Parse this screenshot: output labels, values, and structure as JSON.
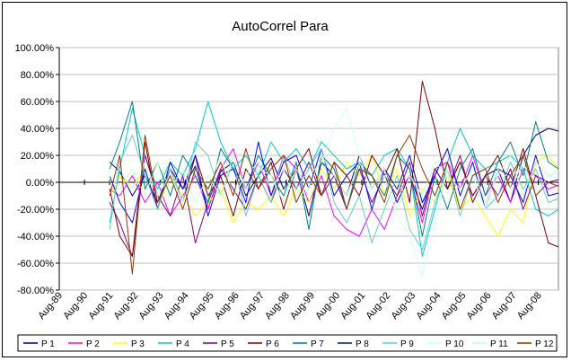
{
  "chart_data": {
    "type": "line",
    "title": "AutoCorrel Para",
    "xlabel": "",
    "ylabel": "",
    "ylim": [
      -80,
      100
    ],
    "y_ticks": [
      "100.00%",
      "80.00%",
      "60.00%",
      "40.00%",
      "20.00%",
      "0.00%",
      "-20.00%",
      "-40.00%",
      "-60.00%",
      "-80.00%"
    ],
    "x_ticks": [
      "Aug-89",
      "Aug-90",
      "Aug-91",
      "Aug-92",
      "Aug-93",
      "Aug-94",
      "Aug-95",
      "Aug-96",
      "Aug-97",
      "Aug-98",
      "Aug-99",
      "Aug-00",
      "Aug-01",
      "Aug-02",
      "Aug-03",
      "Aug-04",
      "Aug-05",
      "Aug-06",
      "Aug-07",
      "Aug-08"
    ],
    "x_range": [
      1989.6,
      2009.4
    ],
    "grid": "horizontal",
    "legend_position": "bottom",
    "series": [
      {
        "name": "P 1",
        "color": "#000080",
        "x": [
          1991.6,
          1992.0,
          1992.5,
          1993.0,
          1993.5,
          1994.0,
          1994.5,
          1995.0,
          1995.5,
          1996.0,
          1996.5,
          1997.0,
          1997.5,
          1998.0,
          1998.5,
          1999.0,
          1999.5,
          2000.0,
          2000.5,
          2001.0,
          2001.5,
          2002.0,
          2002.5,
          2003.0,
          2003.5,
          2004.0,
          2004.5,
          2005.0,
          2005.5,
          2006.0,
          2006.5,
          2007.0,
          2007.5,
          2008.0,
          2008.5,
          2009.0,
          2009.4
        ],
        "values": [
          15,
          8,
          -10,
          5,
          -15,
          10,
          -5,
          12,
          -20,
          8,
          15,
          -10,
          5,
          18,
          -5,
          10,
          -25,
          15,
          5,
          -10,
          20,
          -5,
          10,
          -15,
          5,
          -20,
          10,
          -5,
          15,
          -10,
          5,
          10,
          -15,
          20,
          35,
          40,
          38
        ]
      },
      {
        "name": "P 2",
        "color": "#ff00ff",
        "x": [
          1991.6,
          1992.0,
          1992.5,
          1993.0,
          1993.5,
          1994.0,
          1994.5,
          1995.0,
          1995.5,
          1996.0,
          1996.5,
          1997.0,
          1997.5,
          1998.0,
          1998.5,
          1999.0,
          1999.5,
          2000.0,
          2000.5,
          2001.0,
          2001.5,
          2002.0,
          2002.5,
          2003.0,
          2003.5,
          2004.0,
          2004.5,
          2005.0,
          2005.5,
          2006.0,
          2006.5,
          2007.0,
          2007.5,
          2008.0,
          2008.5,
          2009.0,
          2009.4
        ],
        "values": [
          -5,
          -10,
          5,
          -15,
          0,
          -25,
          -10,
          5,
          -20,
          10,
          25,
          -5,
          15,
          -10,
          20,
          10,
          -15,
          5,
          -25,
          -35,
          -40,
          -20,
          -35,
          -10,
          5,
          -30,
          10,
          15,
          -5,
          20,
          -10,
          5,
          -15,
          10,
          5,
          -5,
          -2
        ]
      },
      {
        "name": "P 3",
        "color": "#ffff00",
        "x": [
          1991.6,
          1992.0,
          1992.5,
          1993.0,
          1993.5,
          1994.0,
          1994.5,
          1995.0,
          1995.5,
          1996.0,
          1996.5,
          1997.0,
          1997.5,
          1998.0,
          1998.5,
          1999.0,
          1999.5,
          2000.0,
          2000.5,
          2001.0,
          2001.5,
          2002.0,
          2002.5,
          2003.0,
          2003.5,
          2004.0,
          2004.5,
          2005.0,
          2005.5,
          2006.0,
          2006.5,
          2007.0,
          2007.5,
          2008.0,
          2008.5,
          2009.0,
          2009.4
        ],
        "values": [
          -10,
          5,
          -5,
          10,
          -20,
          5,
          -10,
          -25,
          -15,
          -5,
          -30,
          -15,
          -20,
          -10,
          -25,
          -5,
          -15,
          10,
          -5,
          15,
          5,
          20,
          -10,
          10,
          -25,
          -5,
          -15,
          5,
          -20,
          -10,
          -25,
          -40,
          -20,
          -30,
          15,
          20,
          10
        ]
      },
      {
        "name": "P 4",
        "color": "#00cccc",
        "x": [
          1991.6,
          1992.0,
          1992.5,
          1993.0,
          1993.5,
          1994.0,
          1994.5,
          1995.0,
          1995.5,
          1996.0,
          1996.5,
          1997.0,
          1997.5,
          1998.0,
          1998.5,
          1999.0,
          1999.5,
          2000.0,
          2000.5,
          2001.0,
          2001.5,
          2002.0,
          2002.5,
          2003.0,
          2003.5,
          2004.0,
          2004.5,
          2005.0,
          2005.5,
          2006.0,
          2006.5,
          2007.0,
          2007.5,
          2008.0,
          2008.5,
          2009.0,
          2009.4
        ],
        "values": [
          -30,
          10,
          55,
          20,
          -5,
          15,
          5,
          25,
          60,
          30,
          10,
          20,
          5,
          30,
          15,
          25,
          10,
          30,
          20,
          10,
          15,
          5,
          20,
          25,
          10,
          -55,
          -20,
          15,
          40,
          20,
          10,
          15,
          20,
          10,
          -20,
          -25,
          -20
        ]
      },
      {
        "name": "P 5",
        "color": "#800080",
        "x": [
          1991.6,
          1992.0,
          1992.5,
          1993.0,
          1993.5,
          1994.0,
          1994.5,
          1995.0,
          1995.5,
          1996.0,
          1996.5,
          1997.0,
          1997.5,
          1998.0,
          1998.5,
          1999.0,
          1999.5,
          2000.0,
          2000.5,
          2001.0,
          2001.5,
          2002.0,
          2002.5,
          2003.0,
          2003.5,
          2004.0,
          2004.5,
          2005.0,
          2005.5,
          2006.0,
          2006.5,
          2007.0,
          2007.5,
          2008.0,
          2008.5,
          2009.0,
          2009.4
        ],
        "values": [
          -15,
          -30,
          -55,
          20,
          -10,
          -25,
          5,
          -45,
          -15,
          10,
          -5,
          -20,
          5,
          -15,
          10,
          -5,
          15,
          -10,
          5,
          -20,
          10,
          -15,
          5,
          -10,
          15,
          -25,
          10,
          -5,
          20,
          -15,
          5,
          -10,
          10,
          -20,
          5,
          0,
          2
        ]
      },
      {
        "name": "P 6",
        "color": "#800000",
        "x": [
          1991.6,
          1992.0,
          1992.5,
          1993.0,
          1993.5,
          1994.0,
          1994.5,
          1995.0,
          1995.5,
          1996.0,
          1996.5,
          1997.0,
          1997.5,
          1998.0,
          1998.5,
          1999.0,
          1999.5,
          2000.0,
          2000.5,
          2001.0,
          2001.5,
          2002.0,
          2002.5,
          2003.0,
          2003.5,
          2004.0,
          2004.5,
          2005.0,
          2005.5,
          2006.0,
          2006.5,
          2007.0,
          2007.5,
          2008.0,
          2008.5,
          2009.0,
          2009.4
        ],
        "values": [
          -5,
          -40,
          -55,
          30,
          -20,
          10,
          -15,
          20,
          -10,
          5,
          -25,
          10,
          -5,
          15,
          -20,
          10,
          25,
          -10,
          15,
          5,
          -10,
          20,
          5,
          25,
          -15,
          75,
          40,
          -5,
          15,
          -10,
          5,
          20,
          -5,
          25,
          -10,
          -45,
          -48
        ]
      },
      {
        "name": "P 7",
        "color": "#008080",
        "x": [
          1991.6,
          1992.0,
          1992.5,
          1993.0,
          1993.5,
          1994.0,
          1994.5,
          1995.0,
          1995.5,
          1996.0,
          1996.5,
          1997.0,
          1997.5,
          1998.0,
          1998.5,
          1999.0,
          1999.5,
          2000.0,
          2000.5,
          2001.0,
          2001.5,
          2002.0,
          2002.5,
          2003.0,
          2003.5,
          2004.0,
          2004.5,
          2005.0,
          2005.5,
          2006.0,
          2006.5,
          2007.0,
          2007.5,
          2008.0,
          2008.5,
          2009.0,
          2009.4
        ],
        "values": [
          10,
          30,
          60,
          -5,
          15,
          -10,
          20,
          5,
          -15,
          25,
          10,
          -5,
          20,
          5,
          -10,
          15,
          -35,
          20,
          10,
          -20,
          15,
          5,
          -10,
          20,
          10,
          -40,
          5,
          -20,
          10,
          25,
          -10,
          15,
          30,
          5,
          45,
          15,
          10
        ]
      },
      {
        "name": "P 8",
        "color": "#0000ff",
        "x": [
          1991.6,
          1992.0,
          1992.5,
          1993.0,
          1993.5,
          1994.0,
          1994.5,
          1995.0,
          1995.5,
          1996.0,
          1996.5,
          1997.0,
          1997.5,
          1998.0,
          1998.5,
          1999.0,
          1999.5,
          2000.0,
          2000.5,
          2001.0,
          2001.5,
          2002.0,
          2002.5,
          2003.0,
          2003.5,
          2004.0,
          2004.5,
          2005.0,
          2005.5,
          2006.0,
          2006.5,
          2007.0,
          2007.5,
          2008.0,
          2008.5,
          2009.0,
          2009.4
        ],
        "values": [
          5,
          -15,
          -30,
          10,
          -20,
          15,
          -5,
          20,
          -25,
          5,
          10,
          -15,
          30,
          -10,
          15,
          20,
          -5,
          25,
          -10,
          5,
          15,
          -20,
          10,
          -5,
          20,
          -15,
          5,
          25,
          -10,
          15,
          -20,
          10,
          5,
          -15,
          20,
          -10,
          -8
        ]
      },
      {
        "name": "P 9",
        "color": "#66cccc",
        "x": [
          1991.6,
          1992.0,
          1992.5,
          1993.0,
          1993.5,
          1994.0,
          1994.5,
          1995.0,
          1995.5,
          1996.0,
          1996.5,
          1997.0,
          1997.5,
          1998.0,
          1998.5,
          1999.0,
          1999.5,
          2000.0,
          2000.5,
          2001.0,
          2001.5,
          2002.0,
          2002.5,
          2003.0,
          2003.5,
          2004.0,
          2004.5,
          2005.0,
          2005.5,
          2006.0,
          2006.5,
          2007.0,
          2007.5,
          2008.0,
          2008.5,
          2009.0,
          2009.4
        ],
        "values": [
          -35,
          15,
          35,
          5,
          -20,
          10,
          -15,
          30,
          20,
          -10,
          15,
          -25,
          5,
          -15,
          20,
          -5,
          10,
          25,
          -15,
          -30,
          -10,
          -45,
          -20,
          5,
          -35,
          -50,
          -15,
          10,
          -25,
          5,
          -20,
          -10,
          15,
          -5,
          10,
          -15,
          -12
        ]
      },
      {
        "name": "P 10",
        "color": "#ccffff",
        "x": [
          1991.6,
          1992.0,
          1992.5,
          1993.0,
          1993.5,
          1994.0,
          1994.5,
          1995.0,
          1995.5,
          1996.0,
          1996.5,
          1997.0,
          1997.5,
          1998.0,
          1998.5,
          1999.0,
          1999.5,
          2000.0,
          2000.5,
          2001.0,
          2001.5,
          2002.0,
          2002.5,
          2003.0,
          2003.5,
          2004.0,
          2004.5,
          2005.0,
          2005.5,
          2006.0,
          2006.5,
          2007.0,
          2007.5,
          2008.0,
          2008.5,
          2009.0,
          2009.4
        ],
        "values": [
          0,
          10,
          -5,
          15,
          -10,
          5,
          -15,
          10,
          -5,
          20,
          -10,
          5,
          15,
          -5,
          10,
          -20,
          5,
          15,
          40,
          55,
          20,
          -10,
          5,
          -25,
          -40,
          -70,
          -30,
          10,
          -15,
          5,
          -20,
          10,
          -5,
          15,
          -10,
          5,
          3
        ]
      },
      {
        "name": "P 11",
        "color": "#ccffcc",
        "x": [
          1991.6,
          1992.0,
          1992.5,
          1993.0,
          1993.5,
          1994.0,
          1994.5,
          1995.0,
          1995.5,
          1996.0,
          1996.5,
          1997.0,
          1997.5,
          1998.0,
          1998.5,
          1999.0,
          1999.5,
          2000.0,
          2000.5,
          2001.0,
          2001.5,
          2002.0,
          2002.5,
          2003.0,
          2003.5,
          2004.0,
          2004.5,
          2005.0,
          2005.5,
          2006.0,
          2006.5,
          2007.0,
          2007.5,
          2008.0,
          2008.5,
          2009.0,
          2009.4
        ],
        "values": [
          5,
          -5,
          10,
          -10,
          15,
          -5,
          10,
          -15,
          5,
          -10,
          20,
          -5,
          10,
          5,
          -15,
          10,
          -5,
          20,
          5,
          -10,
          15,
          -5,
          10,
          -20,
          5,
          -10,
          15,
          5,
          -5,
          10,
          -15,
          5,
          20,
          -10,
          15,
          5,
          8
        ]
      },
      {
        "name": "P 12",
        "color": "#993300",
        "x": [
          1991.6,
          1992.0,
          1992.5,
          1993.0,
          1993.5,
          1994.0,
          1994.5,
          1995.0,
          1995.5,
          1996.0,
          1996.5,
          1997.0,
          1997.5,
          1998.0,
          1998.5,
          1999.0,
          1999.5,
          2000.0,
          2000.5,
          2001.0,
          2001.5,
          2002.0,
          2002.5,
          2003.0,
          2003.5,
          2004.0,
          2004.5,
          2005.0,
          2005.5,
          2006.0,
          2006.5,
          2007.0,
          2007.5,
          2008.0,
          2008.5,
          2009.0,
          2009.4
        ],
        "values": [
          -10,
          20,
          -68,
          35,
          -15,
          5,
          -20,
          10,
          -5,
          15,
          -10,
          25,
          -5,
          10,
          20,
          -15,
          5,
          -10,
          15,
          -20,
          10,
          5,
          -15,
          20,
          35,
          10,
          -10,
          15,
          -20,
          5,
          10,
          -15,
          5,
          20,
          -10,
          0,
          -3
        ]
      }
    ]
  }
}
